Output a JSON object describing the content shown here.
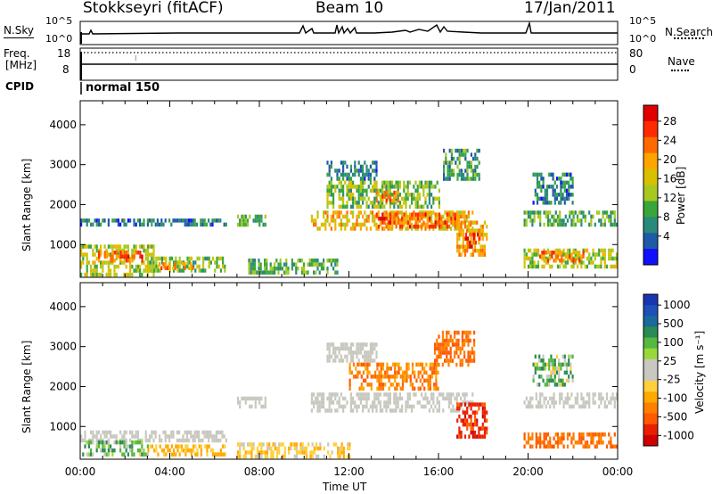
{
  "header": {
    "station": "Stokkseyri (fitACF)",
    "beam": "Beam 10",
    "date": "17/Jan/2011"
  },
  "aux_panels": {
    "nsky_label": "N.Sky",
    "nsearch_label": "N.Search",
    "noise_ticks_left": [
      "10^5",
      "10^0"
    ],
    "noise_ticks_right": [
      "10^5",
      "10^0"
    ],
    "freq_label_1": "Freq.",
    "freq_label_2": "[MHz]",
    "freq_ticks": [
      "18",
      "8"
    ],
    "nave_label": "Nave",
    "nave_ticks": [
      "80",
      "0"
    ],
    "cpid_label": "CPID",
    "cpid_value": "normal 150"
  },
  "colorbars": {
    "power": {
      "label": "Power [dB]",
      "ticks": [
        "28",
        "24",
        "20",
        "16",
        "12",
        "8",
        "4"
      ],
      "colors": [
        "#e00000",
        "#ff2a00",
        "#ff6a00",
        "#ffa500",
        "#d8c000",
        "#a8c820",
        "#3aa63a",
        "#2a8a7a",
        "#1f5aa8",
        "#1010ff"
      ]
    },
    "velocity": {
      "label": "Velocity [m s⁻¹]",
      "ticks": [
        "1000",
        "500",
        "100",
        "25",
        "-25",
        "-100",
        "-500",
        "-1000"
      ],
      "colors": [
        "#1a35b0",
        "#1f4fb8",
        "#1a6a9a",
        "#2c8a55",
        "#55b840",
        "#9ad83a",
        "#c8c8c0",
        "#c8c8c0",
        "#ffd03a",
        "#ffaa00",
        "#ff8000",
        "#ff5a00",
        "#e82000",
        "#d00000"
      ]
    }
  },
  "chart_data": [
    {
      "type": "heatmap",
      "panel": "power",
      "xlabel": "",
      "ylabel": "Slant Range [km]",
      "xlim": [
        0,
        24
      ],
      "ylim": [
        180,
        4600
      ],
      "yticks": [
        "1000",
        "2000",
        "3000",
        "4000"
      ],
      "value_unit": "dB",
      "regions": [
        {
          "t0": 0.0,
          "t1": 3.3,
          "r0": 250,
          "r1": 1000,
          "level": 14
        },
        {
          "t0": 0.8,
          "t1": 2.8,
          "r0": 600,
          "r1": 850,
          "level": 24
        },
        {
          "t0": 3.0,
          "t1": 6.5,
          "r0": 300,
          "r1": 700,
          "level": 12
        },
        {
          "t0": 3.5,
          "t1": 5.0,
          "r0": 380,
          "r1": 560,
          "level": 22
        },
        {
          "t0": 7.5,
          "t1": 11.5,
          "r0": 250,
          "r1": 650,
          "level": 10
        },
        {
          "t0": 0.0,
          "t1": 6.5,
          "r0": 1500,
          "r1": 1650,
          "level": 6
        },
        {
          "t0": 7.0,
          "t1": 8.3,
          "r0": 1450,
          "r1": 1750,
          "level": 10
        },
        {
          "t0": 10.3,
          "t1": 17.5,
          "r0": 1350,
          "r1": 1850,
          "level": 18
        },
        {
          "t0": 13.2,
          "t1": 16.8,
          "r0": 1450,
          "r1": 1800,
          "level": 24
        },
        {
          "t0": 11.0,
          "t1": 16.0,
          "r0": 1900,
          "r1": 2600,
          "level": 12
        },
        {
          "t0": 13.2,
          "t1": 14.2,
          "r0": 2050,
          "r1": 2350,
          "level": 22
        },
        {
          "t0": 11.0,
          "t1": 13.2,
          "r0": 2600,
          "r1": 3100,
          "level": 6
        },
        {
          "t0": 16.2,
          "t1": 17.8,
          "r0": 2600,
          "r1": 3400,
          "level": 8
        },
        {
          "t0": 16.8,
          "t1": 18.2,
          "r0": 700,
          "r1": 1600,
          "level": 20
        },
        {
          "t0": 17.1,
          "t1": 17.9,
          "r0": 900,
          "r1": 1300,
          "level": 28
        },
        {
          "t0": 19.8,
          "t1": 24.0,
          "r0": 1450,
          "r1": 1850,
          "level": 10
        },
        {
          "t0": 19.8,
          "t1": 24.0,
          "r0": 450,
          "r1": 900,
          "level": 14
        },
        {
          "t0": 20.5,
          "t1": 22.5,
          "r0": 600,
          "r1": 850,
          "level": 22
        },
        {
          "t0": 20.2,
          "t1": 22.0,
          "r0": 2000,
          "r1": 2800,
          "level": 6
        }
      ]
    },
    {
      "type": "heatmap",
      "panel": "velocity",
      "xlabel": "Time UT",
      "ylabel": "Slant Range [km]",
      "xlim": [
        0,
        24
      ],
      "ylim": [
        180,
        4600
      ],
      "xticks": [
        "00:00",
        "04:00",
        "08:00",
        "12:00",
        "16:00",
        "20:00",
        "00:00"
      ],
      "yticks": [
        "1000",
        "2000",
        "3000",
        "4000"
      ],
      "value_unit": "m s-1",
      "regions": [
        {
          "t0": 0.0,
          "t1": 6.5,
          "r0": 650,
          "r1": 900,
          "level": 0
        },
        {
          "t0": 0.0,
          "t1": 3.0,
          "r0": 250,
          "r1": 650,
          "level": 150
        },
        {
          "t0": 3.0,
          "t1": 6.5,
          "r0": 250,
          "r1": 550,
          "level": -80
        },
        {
          "t0": 7.0,
          "t1": 12.0,
          "r0": 250,
          "r1": 600,
          "level": -60
        },
        {
          "t0": 7.0,
          "t1": 8.3,
          "r0": 1450,
          "r1": 1750,
          "level": 0
        },
        {
          "t0": 10.3,
          "t1": 17.5,
          "r0": 1350,
          "r1": 1850,
          "level": 0
        },
        {
          "t0": 12.0,
          "t1": 16.0,
          "r0": 1900,
          "r1": 2600,
          "level": -300
        },
        {
          "t0": 11.0,
          "t1": 13.2,
          "r0": 2600,
          "r1": 3100,
          "level": 0
        },
        {
          "t0": 15.8,
          "t1": 17.6,
          "r0": 2500,
          "r1": 3400,
          "level": -400
        },
        {
          "t0": 16.8,
          "t1": 18.2,
          "r0": 700,
          "r1": 1600,
          "level": -700
        },
        {
          "t0": 19.8,
          "t1": 24.0,
          "r0": 450,
          "r1": 850,
          "level": -400
        },
        {
          "t0": 19.8,
          "t1": 24.0,
          "r0": 1450,
          "r1": 1850,
          "level": 0
        },
        {
          "t0": 20.2,
          "t1": 22.0,
          "r0": 2000,
          "r1": 2800,
          "level": 120
        }
      ]
    }
  ]
}
